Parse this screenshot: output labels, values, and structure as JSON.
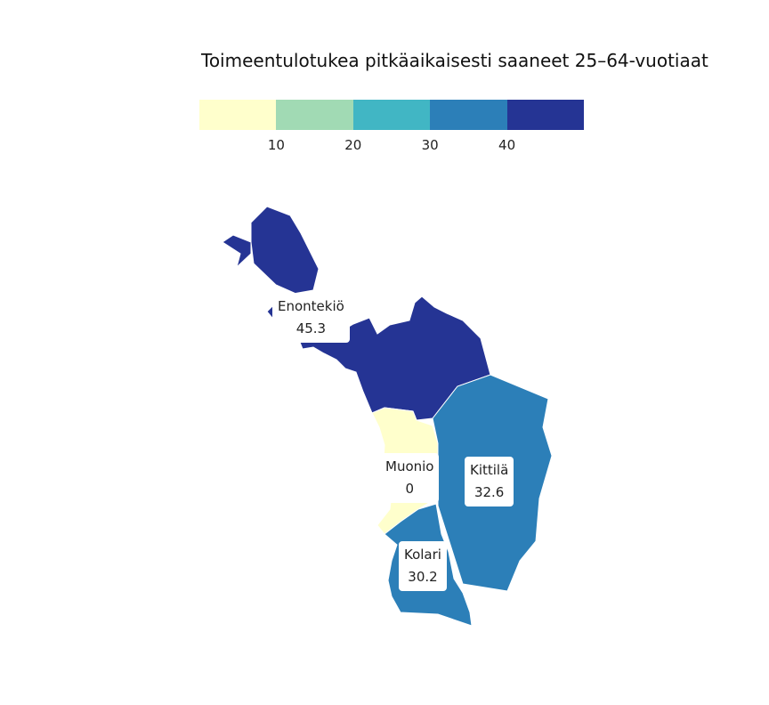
{
  "map": {
    "title": "Toimeentulotukea pitkäaikaisesti saaneet 25–64-vuotiaat",
    "legend": {
      "colors": [
        "#ffffcc",
        "#a1dab4",
        "#41b6c4",
        "#2c7fb8",
        "#253494"
      ],
      "ticks": [
        "10",
        "20",
        "30",
        "40"
      ]
    },
    "regions": [
      {
        "name": "Enontekiö",
        "value": "45.3",
        "color": "#253494"
      },
      {
        "name": "Muonio",
        "value": "0",
        "color": "#ffffcc"
      },
      {
        "name": "Kittilä",
        "value": "32.6",
        "color": "#2c7fb8"
      },
      {
        "name": "Kolari",
        "value": "30.2",
        "color": "#2c7fb8"
      }
    ]
  }
}
